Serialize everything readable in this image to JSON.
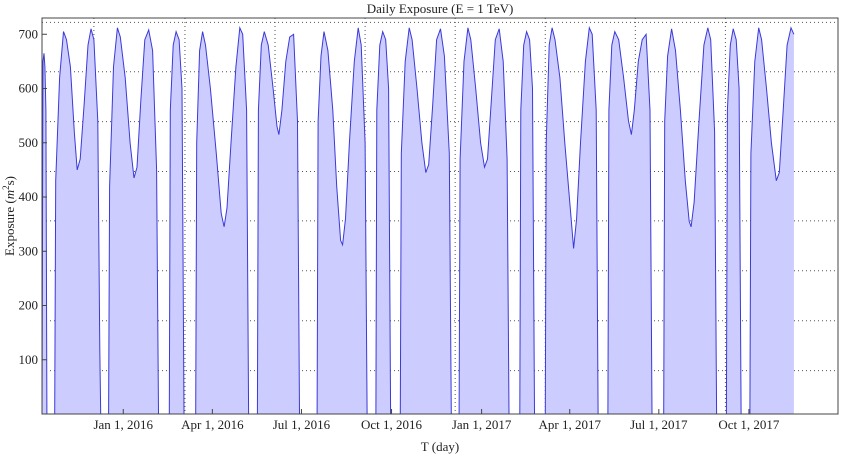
{
  "chart_data": {
    "type": "area",
    "title": "Daily Exposure  (E = 1 TeV)",
    "xlabel": "T (day)",
    "ylabel_main": "Exposure (",
    "ylabel_unit": "m",
    "ylabel_exp": "2",
    "ylabel_tail": "s)",
    "xlim": [
      "2015-10-10",
      "2017-12-31"
    ],
    "ylim": [
      0,
      730
    ],
    "y_ticks": [
      100,
      200,
      300,
      400,
      500,
      600,
      700
    ],
    "y_gridlines": [
      80,
      172,
      264,
      356,
      447,
      539,
      631,
      722
    ],
    "x_ticks": [
      {
        "date": "2016-01-01",
        "label": "Jan 1, 2016"
      },
      {
        "date": "2016-04-01",
        "label": "Apr 1, 2016"
      },
      {
        "date": "2016-07-01",
        "label": "Jul 1, 2016"
      },
      {
        "date": "2016-10-01",
        "label": "Oct 1, 2016"
      },
      {
        "date": "2017-01-01",
        "label": "Jan 1, 2017"
      },
      {
        "date": "2017-04-01",
        "label": "Apr 1, 2017"
      },
      {
        "date": "2017-07-01",
        "label": "Jul 1, 2017"
      },
      {
        "date": "2017-10-01",
        "label": "Oct 1, 2017"
      }
    ],
    "x_gridlines": [
      "2015-12-02",
      "2016-03-04",
      "2016-06-04",
      "2016-09-04",
      "2016-12-05",
      "2017-03-07",
      "2017-06-07",
      "2017-09-07"
    ],
    "grid": true,
    "fill_color": "#ccccff",
    "line_color": "#3a3ad8",
    "segments": [
      {
        "points": [
          [
            "2015-10-10",
            0
          ],
          [
            "2015-10-11",
            650
          ],
          [
            "2015-10-12",
            665
          ],
          [
            "2015-10-13",
            640
          ],
          [
            "2015-10-14",
            560
          ],
          [
            "2015-10-15",
            0
          ]
        ]
      },
      {
        "points": [
          [
            "2015-10-23",
            0
          ],
          [
            "2015-10-24",
            430
          ],
          [
            "2015-10-28",
            620
          ],
          [
            "2015-11-01",
            705
          ],
          [
            "2015-11-04",
            690
          ],
          [
            "2015-11-08",
            640
          ],
          [
            "2015-11-12",
            520
          ],
          [
            "2015-11-15",
            450
          ],
          [
            "2015-11-18",
            470
          ],
          [
            "2015-11-22",
            570
          ],
          [
            "2015-11-26",
            680
          ],
          [
            "2015-11-29",
            710
          ],
          [
            "2015-12-02",
            690
          ],
          [
            "2015-12-06",
            540
          ],
          [
            "2015-12-08",
            120
          ],
          [
            "2015-12-09",
            0
          ]
        ]
      },
      {
        "points": [
          [
            "2015-12-17",
            0
          ],
          [
            "2015-12-18",
            420
          ],
          [
            "2015-12-22",
            640
          ],
          [
            "2015-12-26",
            712
          ],
          [
            "2015-12-29",
            695
          ],
          [
            "2016-01-03",
            620
          ],
          [
            "2016-01-08",
            500
          ],
          [
            "2016-01-12",
            435
          ],
          [
            "2016-01-15",
            455
          ],
          [
            "2016-01-19",
            580
          ],
          [
            "2016-01-23",
            690
          ],
          [
            "2016-01-27",
            708
          ],
          [
            "2016-01-31",
            670
          ],
          [
            "2016-02-04",
            450
          ],
          [
            "2016-02-06",
            0
          ]
        ]
      },
      {
        "points": [
          [
            "2016-02-17",
            0
          ],
          [
            "2016-02-18",
            560
          ],
          [
            "2016-02-21",
            680
          ],
          [
            "2016-02-24",
            705
          ],
          [
            "2016-02-27",
            690
          ],
          [
            "2016-03-01",
            600
          ],
          [
            "2016-03-03",
            0
          ]
        ]
      },
      {
        "points": [
          [
            "2016-03-15",
            0
          ],
          [
            "2016-03-16",
            500
          ],
          [
            "2016-03-19",
            670
          ],
          [
            "2016-03-22",
            705
          ],
          [
            "2016-03-25",
            680
          ],
          [
            "2016-03-30",
            600
          ],
          [
            "2016-04-05",
            480
          ],
          [
            "2016-04-10",
            370
          ],
          [
            "2016-04-13",
            345
          ],
          [
            "2016-04-16",
            380
          ],
          [
            "2016-04-20",
            500
          ],
          [
            "2016-04-25",
            640
          ],
          [
            "2016-04-29",
            712
          ],
          [
            "2016-05-02",
            700
          ],
          [
            "2016-05-06",
            560
          ],
          [
            "2016-05-08",
            0
          ]
        ]
      },
      {
        "points": [
          [
            "2016-05-17",
            0
          ],
          [
            "2016-05-18",
            560
          ],
          [
            "2016-05-21",
            680
          ],
          [
            "2016-05-24",
            705
          ],
          [
            "2016-05-28",
            680
          ],
          [
            "2016-06-02",
            600
          ],
          [
            "2016-06-06",
            530
          ],
          [
            "2016-06-08",
            515
          ],
          [
            "2016-06-11",
            560
          ],
          [
            "2016-06-15",
            650
          ],
          [
            "2016-06-19",
            695
          ],
          [
            "2016-06-23",
            700
          ],
          [
            "2016-06-27",
            540
          ],
          [
            "2016-06-29",
            0
          ]
        ]
      },
      {
        "points": [
          [
            "2016-07-17",
            0
          ],
          [
            "2016-07-18",
            540
          ],
          [
            "2016-07-21",
            660
          ],
          [
            "2016-07-24",
            705
          ],
          [
            "2016-07-28",
            670
          ],
          [
            "2016-08-02",
            560
          ],
          [
            "2016-08-06",
            420
          ],
          [
            "2016-08-10",
            320
          ],
          [
            "2016-08-12",
            312
          ],
          [
            "2016-08-15",
            360
          ],
          [
            "2016-08-19",
            500
          ],
          [
            "2016-08-24",
            650
          ],
          [
            "2016-08-28",
            712
          ],
          [
            "2016-08-31",
            680
          ],
          [
            "2016-09-04",
            500
          ],
          [
            "2016-09-06",
            0
          ]
        ]
      },
      {
        "points": [
          [
            "2016-09-15",
            0
          ],
          [
            "2016-09-16",
            560
          ],
          [
            "2016-09-19",
            680
          ],
          [
            "2016-09-22",
            705
          ],
          [
            "2016-09-25",
            690
          ],
          [
            "2016-09-28",
            600
          ],
          [
            "2016-09-30",
            0
          ]
        ]
      },
      {
        "points": [
          [
            "2016-10-10",
            0
          ],
          [
            "2016-10-11",
            480
          ],
          [
            "2016-10-15",
            650
          ],
          [
            "2016-10-19",
            712
          ],
          [
            "2016-10-22",
            690
          ],
          [
            "2016-10-27",
            600
          ],
          [
            "2016-11-01",
            500
          ],
          [
            "2016-11-05",
            445
          ],
          [
            "2016-11-08",
            460
          ],
          [
            "2016-11-12",
            570
          ],
          [
            "2016-11-16",
            690
          ],
          [
            "2016-11-20",
            710
          ],
          [
            "2016-11-24",
            660
          ],
          [
            "2016-11-29",
            480
          ],
          [
            "2016-12-01",
            0
          ]
        ]
      },
      {
        "points": [
          [
            "2016-12-09",
            0
          ],
          [
            "2016-12-10",
            470
          ],
          [
            "2016-12-14",
            650
          ],
          [
            "2016-12-18",
            712
          ],
          [
            "2016-12-21",
            690
          ],
          [
            "2016-12-26",
            600
          ],
          [
            "2016-12-31",
            500
          ],
          [
            "2017-01-04",
            455
          ],
          [
            "2017-01-07",
            470
          ],
          [
            "2017-01-11",
            580
          ],
          [
            "2017-01-15",
            690
          ],
          [
            "2017-01-19",
            710
          ],
          [
            "2017-01-23",
            650
          ],
          [
            "2017-01-27",
            470
          ],
          [
            "2017-01-29",
            0
          ]
        ]
      },
      {
        "points": [
          [
            "2017-02-09",
            0
          ],
          [
            "2017-02-10",
            560
          ],
          [
            "2017-02-13",
            680
          ],
          [
            "2017-02-16",
            705
          ],
          [
            "2017-02-19",
            690
          ],
          [
            "2017-02-22",
            600
          ],
          [
            "2017-02-24",
            0
          ]
        ]
      },
      {
        "points": [
          [
            "2017-03-07",
            0
          ],
          [
            "2017-03-08",
            500
          ],
          [
            "2017-03-11",
            680
          ],
          [
            "2017-03-14",
            712
          ],
          [
            "2017-03-17",
            690
          ],
          [
            "2017-03-22",
            620
          ],
          [
            "2017-03-27",
            500
          ],
          [
            "2017-04-02",
            370
          ],
          [
            "2017-04-05",
            305
          ],
          [
            "2017-04-08",
            360
          ],
          [
            "2017-04-12",
            500
          ],
          [
            "2017-04-17",
            650
          ],
          [
            "2017-04-21",
            712
          ],
          [
            "2017-04-24",
            700
          ],
          [
            "2017-04-28",
            560
          ],
          [
            "2017-04-30",
            0
          ]
        ]
      },
      {
        "points": [
          [
            "2017-05-10",
            0
          ],
          [
            "2017-05-11",
            560
          ],
          [
            "2017-05-14",
            680
          ],
          [
            "2017-05-17",
            705
          ],
          [
            "2017-05-21",
            690
          ],
          [
            "2017-05-26",
            620
          ],
          [
            "2017-05-31",
            540
          ],
          [
            "2017-06-03",
            515
          ],
          [
            "2017-06-06",
            560
          ],
          [
            "2017-06-10",
            650
          ],
          [
            "2017-06-14",
            690
          ],
          [
            "2017-06-18",
            700
          ],
          [
            "2017-06-22",
            560
          ],
          [
            "2017-06-24",
            0
          ]
        ]
      },
      {
        "points": [
          [
            "2017-07-06",
            0
          ],
          [
            "2017-07-07",
            540
          ],
          [
            "2017-07-10",
            660
          ],
          [
            "2017-07-14",
            710
          ],
          [
            "2017-07-18",
            670
          ],
          [
            "2017-07-23",
            560
          ],
          [
            "2017-07-28",
            430
          ],
          [
            "2017-08-01",
            355
          ],
          [
            "2017-08-03",
            345
          ],
          [
            "2017-08-06",
            390
          ],
          [
            "2017-08-11",
            540
          ],
          [
            "2017-08-16",
            680
          ],
          [
            "2017-08-20",
            712
          ],
          [
            "2017-08-23",
            690
          ],
          [
            "2017-08-27",
            520
          ],
          [
            "2017-08-29",
            0
          ]
        ]
      },
      {
        "points": [
          [
            "2017-09-08",
            0
          ],
          [
            "2017-09-09",
            560
          ],
          [
            "2017-09-12",
            680
          ],
          [
            "2017-09-15",
            710
          ],
          [
            "2017-09-18",
            690
          ],
          [
            "2017-09-21",
            600
          ],
          [
            "2017-09-23",
            0
          ]
        ]
      },
      {
        "points": [
          [
            "2017-10-02",
            0
          ],
          [
            "2017-10-03",
            480
          ],
          [
            "2017-10-07",
            650
          ],
          [
            "2017-10-11",
            712
          ],
          [
            "2017-10-14",
            690
          ],
          [
            "2017-10-19",
            600
          ],
          [
            "2017-10-24",
            500
          ],
          [
            "2017-10-29",
            430
          ],
          [
            "2017-11-01",
            445
          ],
          [
            "2017-11-05",
            560
          ],
          [
            "2017-11-09",
            680
          ],
          [
            "2017-11-13",
            712
          ],
          [
            "2017-11-16",
            700
          ]
        ]
      }
    ]
  }
}
